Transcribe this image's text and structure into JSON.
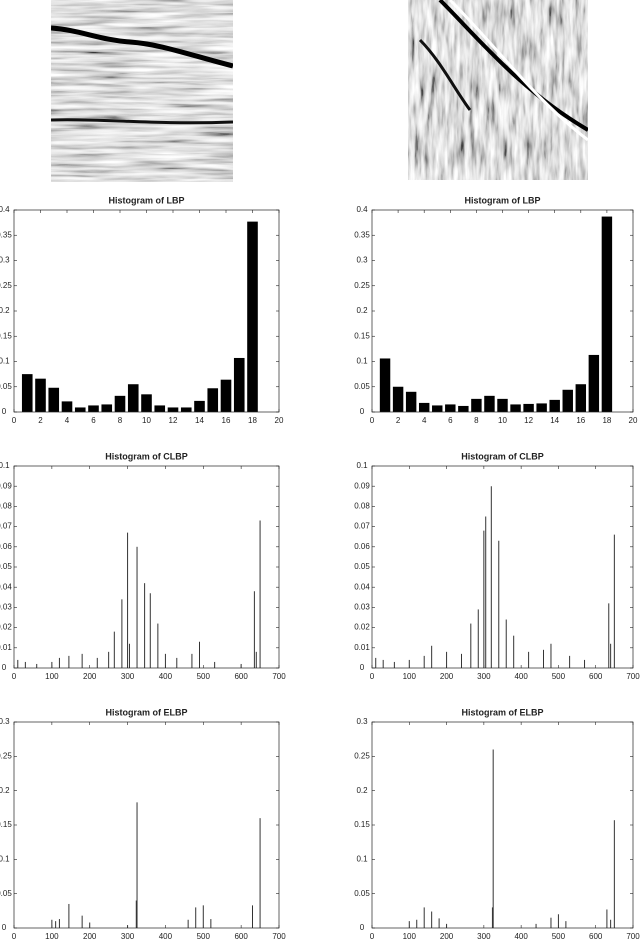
{
  "chart_data": [
    {
      "type": "bar",
      "title": "Histogram of LBP",
      "color": "#000000",
      "x": [
        1,
        2,
        3,
        4,
        5,
        6,
        7,
        8,
        9,
        10,
        11,
        12,
        13,
        14,
        15,
        16,
        17,
        18
      ],
      "values": [
        0.075,
        0.066,
        0.048,
        0.021,
        0.009,
        0.013,
        0.015,
        0.032,
        0.055,
        0.035,
        0.013,
        0.009,
        0.009,
        0.022,
        0.047,
        0.064,
        0.107,
        0.377
      ],
      "xlim": [
        0,
        20
      ],
      "xticks": [
        0,
        2,
        4,
        6,
        8,
        10,
        12,
        14,
        16,
        18,
        20
      ],
      "ylim": [
        0,
        0.4
      ],
      "yticks": [
        0,
        0.05,
        0.1,
        0.15,
        0.2,
        0.25,
        0.3,
        0.35,
        0.4
      ]
    },
    {
      "type": "bar",
      "title": "Histogram of LBP",
      "color": "#000000",
      "x": [
        1,
        2,
        3,
        4,
        5,
        6,
        7,
        8,
        9,
        10,
        11,
        12,
        13,
        14,
        15,
        16,
        17,
        18
      ],
      "values": [
        0.106,
        0.05,
        0.04,
        0.018,
        0.013,
        0.015,
        0.012,
        0.026,
        0.032,
        0.026,
        0.015,
        0.016,
        0.017,
        0.024,
        0.044,
        0.055,
        0.113,
        0.387
      ],
      "xlim": [
        0,
        20
      ],
      "xticks": [
        0,
        2,
        4,
        6,
        8,
        10,
        12,
        14,
        16,
        18,
        20
      ],
      "ylim": [
        0,
        0.4
      ],
      "yticks": [
        0,
        0.05,
        0.1,
        0.15,
        0.2,
        0.25,
        0.3,
        0.35,
        0.4
      ]
    },
    {
      "type": "stem",
      "title": "Histogram of CLBP",
      "color": "#333333",
      "x": [
        10,
        30,
        60,
        100,
        120,
        145,
        180,
        220,
        250,
        265,
        285,
        300,
        305,
        325,
        345,
        360,
        380,
        400,
        430,
        470,
        490,
        530,
        600,
        635,
        640,
        650
      ],
      "values": [
        0.004,
        0.003,
        0.002,
        0.003,
        0.005,
        0.006,
        0.007,
        0.005,
        0.008,
        0.018,
        0.034,
        0.067,
        0.012,
        0.06,
        0.042,
        0.037,
        0.022,
        0.007,
        0.005,
        0.007,
        0.013,
        0.003,
        0.002,
        0.038,
        0.008,
        0.073
      ],
      "xlim": [
        0,
        700
      ],
      "xticks": [
        0,
        100,
        200,
        300,
        400,
        500,
        600,
        700
      ],
      "ylim": [
        0,
        0.1
      ],
      "yticks": [
        0,
        0.01,
        0.02,
        0.03,
        0.04,
        0.05,
        0.06,
        0.07,
        0.08,
        0.09,
        0.1
      ]
    },
    {
      "type": "stem",
      "title": "Histogram of CLBP",
      "color": "#333333",
      "x": [
        10,
        30,
        60,
        100,
        140,
        160,
        200,
        240,
        265,
        285,
        300,
        305,
        320,
        340,
        360,
        380,
        420,
        460,
        480,
        530,
        570,
        635,
        640,
        650
      ],
      "values": [
        0.005,
        0.004,
        0.003,
        0.004,
        0.006,
        0.011,
        0.008,
        0.007,
        0.022,
        0.029,
        0.068,
        0.075,
        0.09,
        0.063,
        0.024,
        0.016,
        0.008,
        0.009,
        0.012,
        0.006,
        0.004,
        0.032,
        0.012,
        0.066
      ],
      "xlim": [
        0,
        700
      ],
      "xticks": [
        0,
        100,
        200,
        300,
        400,
        500,
        600,
        700
      ],
      "ylim": [
        0,
        0.1
      ],
      "yticks": [
        0,
        0.01,
        0.02,
        0.03,
        0.04,
        0.05,
        0.06,
        0.07,
        0.08,
        0.09,
        0.1
      ]
    },
    {
      "type": "stem",
      "title": "Histogram of ELBP",
      "color": "#333333",
      "x": [
        100,
        110,
        120,
        145,
        180,
        200,
        300,
        323,
        325,
        460,
        480,
        500,
        520,
        630,
        650
      ],
      "values": [
        0.012,
        0.01,
        0.013,
        0.035,
        0.018,
        0.008,
        0.004,
        0.04,
        0.183,
        0.012,
        0.03,
        0.033,
        0.013,
        0.033,
        0.16
      ],
      "xlim": [
        0,
        700
      ],
      "xticks": [
        0,
        100,
        200,
        300,
        400,
        500,
        600,
        700
      ],
      "ylim": [
        0,
        0.3
      ],
      "yticks": [
        0,
        0.05,
        0.1,
        0.15,
        0.2,
        0.25,
        0.3
      ]
    },
    {
      "type": "stem",
      "title": "Histogram of ELBP",
      "color": "#333333",
      "x": [
        100,
        120,
        140,
        160,
        180,
        200,
        323,
        325,
        440,
        480,
        500,
        520,
        630,
        640,
        650
      ],
      "values": [
        0.01,
        0.012,
        0.03,
        0.024,
        0.014,
        0.006,
        0.03,
        0.26,
        0.006,
        0.015,
        0.02,
        0.01,
        0.027,
        0.012,
        0.157
      ],
      "xlim": [
        0,
        700
      ],
      "xticks": [
        0,
        100,
        200,
        300,
        400,
        500,
        600,
        700
      ],
      "ylim": [
        0,
        0.3
      ],
      "yticks": [
        0,
        0.05,
        0.1,
        0.15,
        0.2,
        0.25,
        0.3
      ]
    }
  ]
}
